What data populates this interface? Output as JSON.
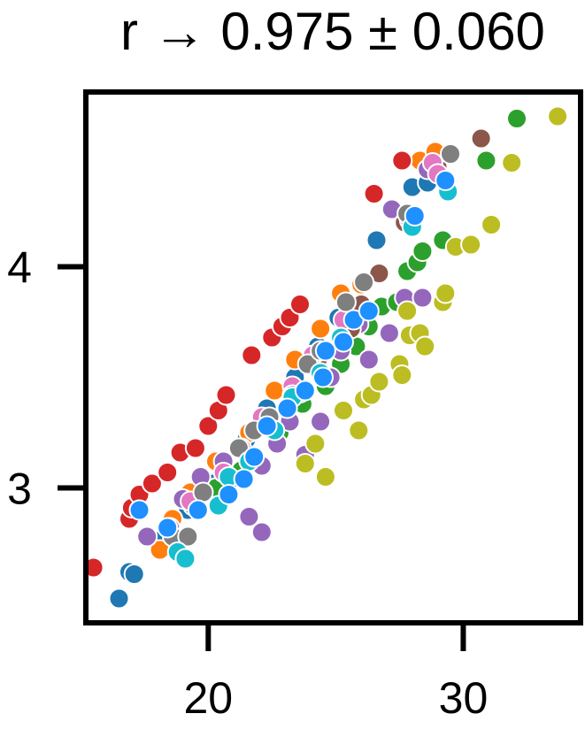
{
  "chart_data": {
    "type": "scatter",
    "title": "r → 0.975 ± 0.060",
    "xlabel": "",
    "ylabel": "",
    "xlim": [
      15.2,
      34.6
    ],
    "ylim": [
      2.39,
      4.79
    ],
    "x_ticks": [
      20,
      30
    ],
    "x_tick_labels": [
      "20",
      "30"
    ],
    "y_ticks": [
      3,
      4
    ],
    "y_tick_labels": [
      "3",
      "4"
    ],
    "grid": false,
    "legend": "none",
    "series": [
      {
        "color": "#1f77b4",
        "points": [
          [
            16.5,
            2.5
          ],
          [
            16.9,
            2.62
          ],
          [
            17.1,
            2.61
          ],
          [
            18.3,
            2.78
          ],
          [
            19.2,
            2.9
          ],
          [
            20.2,
            3.02
          ],
          [
            21.5,
            3.22
          ],
          [
            22.3,
            3.36
          ],
          [
            23.4,
            3.5
          ],
          [
            24.3,
            3.64
          ],
          [
            25.1,
            3.77
          ],
          [
            26.6,
            4.12
          ],
          [
            28.0,
            4.36
          ],
          [
            28.6,
            4.38
          ]
        ]
      },
      {
        "color": "#ff7f0e",
        "points": [
          [
            18.1,
            2.72
          ],
          [
            18.6,
            2.86
          ],
          [
            19.3,
            2.98
          ],
          [
            20.3,
            3.12
          ],
          [
            21.6,
            3.25
          ],
          [
            22.6,
            3.44
          ],
          [
            23.4,
            3.58
          ],
          [
            24.4,
            3.72
          ],
          [
            25.2,
            3.88
          ],
          [
            26.0,
            3.92
          ],
          [
            28.3,
            4.48
          ],
          [
            28.9,
            4.52
          ]
        ]
      },
      {
        "color": "#2ca02c",
        "points": [
          [
            19.4,
            2.92
          ],
          [
            20.3,
            3.0
          ],
          [
            21.3,
            3.08
          ],
          [
            22.8,
            3.25
          ],
          [
            23.7,
            3.38
          ],
          [
            24.6,
            3.46
          ],
          [
            25.2,
            3.56
          ],
          [
            25.8,
            3.64
          ],
          [
            26.3,
            3.73
          ],
          [
            26.8,
            3.82
          ],
          [
            27.4,
            3.84
          ],
          [
            27.8,
            3.98
          ],
          [
            28.2,
            4.02
          ],
          [
            28.4,
            4.07
          ],
          [
            29.2,
            4.12
          ],
          [
            30.9,
            4.48
          ],
          [
            32.1,
            4.67
          ]
        ]
      },
      {
        "color": "#d62728",
        "points": [
          [
            15.5,
            2.64
          ],
          [
            16.9,
            2.86
          ],
          [
            17.0,
            2.91
          ],
          [
            17.3,
            2.97
          ],
          [
            17.8,
            3.02
          ],
          [
            18.4,
            3.07
          ],
          [
            18.9,
            3.16
          ],
          [
            19.5,
            3.18
          ],
          [
            20.0,
            3.28
          ],
          [
            20.4,
            3.35
          ],
          [
            20.7,
            3.42
          ],
          [
            21.7,
            3.6
          ],
          [
            22.5,
            3.68
          ],
          [
            22.9,
            3.73
          ],
          [
            23.2,
            3.77
          ],
          [
            23.6,
            3.83
          ],
          [
            26.5,
            4.33
          ],
          [
            27.6,
            4.48
          ]
        ]
      },
      {
        "color": "#9467bd",
        "points": [
          [
            17.6,
            2.78
          ],
          [
            18.5,
            2.82
          ],
          [
            19.0,
            2.95
          ],
          [
            19.7,
            3.05
          ],
          [
            20.6,
            3.12
          ],
          [
            21.6,
            2.87
          ],
          [
            22.1,
            2.8
          ],
          [
            22.1,
            3.1
          ],
          [
            22.7,
            3.2
          ],
          [
            23.2,
            3.3
          ],
          [
            23.8,
            3.15
          ],
          [
            24.4,
            3.3
          ],
          [
            24.8,
            3.5
          ],
          [
            25.2,
            3.62
          ],
          [
            25.9,
            3.74
          ],
          [
            26.3,
            3.58
          ],
          [
            27.1,
            3.7
          ],
          [
            27.7,
            3.86
          ],
          [
            28.4,
            3.86
          ],
          [
            27.9,
            4.2
          ],
          [
            28.6,
            4.44
          ],
          [
            27.2,
            4.26
          ]
        ]
      },
      {
        "color": "#8c564b",
        "points": [
          [
            23.6,
            3.43
          ],
          [
            24.3,
            3.58
          ],
          [
            25.6,
            3.72
          ],
          [
            26.0,
            3.83
          ],
          [
            26.7,
            3.97
          ],
          [
            27.7,
            4.2
          ],
          [
            29.0,
            4.45
          ],
          [
            30.7,
            4.58
          ]
        ]
      },
      {
        "color": "#e377c2",
        "points": [
          [
            19.3,
            2.94
          ],
          [
            20.6,
            3.07
          ],
          [
            21.3,
            3.18
          ],
          [
            22.1,
            3.32
          ],
          [
            23.3,
            3.46
          ],
          [
            24.1,
            3.6
          ],
          [
            25.3,
            3.76
          ],
          [
            27.9,
            4.21
          ],
          [
            28.8,
            4.47
          ],
          [
            29.0,
            4.42
          ]
        ]
      },
      {
        "color": "#7f7f7f",
        "points": [
          [
            18.6,
            2.78
          ],
          [
            19.2,
            2.78
          ],
          [
            19.8,
            2.98
          ],
          [
            20.9,
            3.04
          ],
          [
            21.2,
            3.18
          ],
          [
            21.8,
            3.26
          ],
          [
            22.4,
            3.32
          ],
          [
            23.3,
            3.42
          ],
          [
            23.9,
            3.56
          ],
          [
            24.4,
            3.62
          ],
          [
            25.4,
            3.84
          ],
          [
            26.1,
            3.93
          ],
          [
            27.8,
            4.24
          ],
          [
            29.5,
            4.51
          ]
        ]
      },
      {
        "color": "#bcbd22",
        "points": [
          [
            23.8,
            3.11
          ],
          [
            24.2,
            3.2
          ],
          [
            24.6,
            3.05
          ],
          [
            25.3,
            3.35
          ],
          [
            25.9,
            3.26
          ],
          [
            26.1,
            3.4
          ],
          [
            26.4,
            3.42
          ],
          [
            26.7,
            3.48
          ],
          [
            27.5,
            3.56
          ],
          [
            27.6,
            3.51
          ],
          [
            27.9,
            3.69
          ],
          [
            28.3,
            3.7
          ],
          [
            28.5,
            3.64
          ],
          [
            27.8,
            3.8
          ],
          [
            29.2,
            3.84
          ],
          [
            29.3,
            3.88
          ],
          [
            29.7,
            4.09
          ],
          [
            30.3,
            4.1
          ],
          [
            31.1,
            4.19
          ],
          [
            31.9,
            4.47
          ],
          [
            33.7,
            4.68
          ]
        ]
      },
      {
        "color": "#17becf",
        "points": [
          [
            18.8,
            2.71
          ],
          [
            19.1,
            2.68
          ],
          [
            20.4,
            2.92
          ],
          [
            20.8,
            3.05
          ],
          [
            21.6,
            3.12
          ],
          [
            22.6,
            3.26
          ],
          [
            23.3,
            3.41
          ],
          [
            24.4,
            3.52
          ],
          [
            25.2,
            3.68
          ],
          [
            28.0,
            4.18
          ],
          [
            29.4,
            4.34
          ]
        ]
      },
      {
        "color": "#1e90ff",
        "points": [
          [
            17.3,
            2.9
          ],
          [
            18.4,
            2.82
          ],
          [
            19.6,
            2.9
          ],
          [
            20.8,
            2.97
          ],
          [
            21.4,
            3.04
          ],
          [
            21.8,
            3.14
          ],
          [
            22.3,
            3.28
          ],
          [
            23.1,
            3.36
          ],
          [
            23.8,
            3.44
          ],
          [
            24.5,
            3.5
          ],
          [
            24.6,
            3.62
          ],
          [
            25.3,
            3.66
          ],
          [
            25.7,
            3.76
          ],
          [
            26.3,
            3.8
          ],
          [
            28.1,
            4.23
          ],
          [
            29.3,
            4.39
          ]
        ]
      }
    ]
  }
}
